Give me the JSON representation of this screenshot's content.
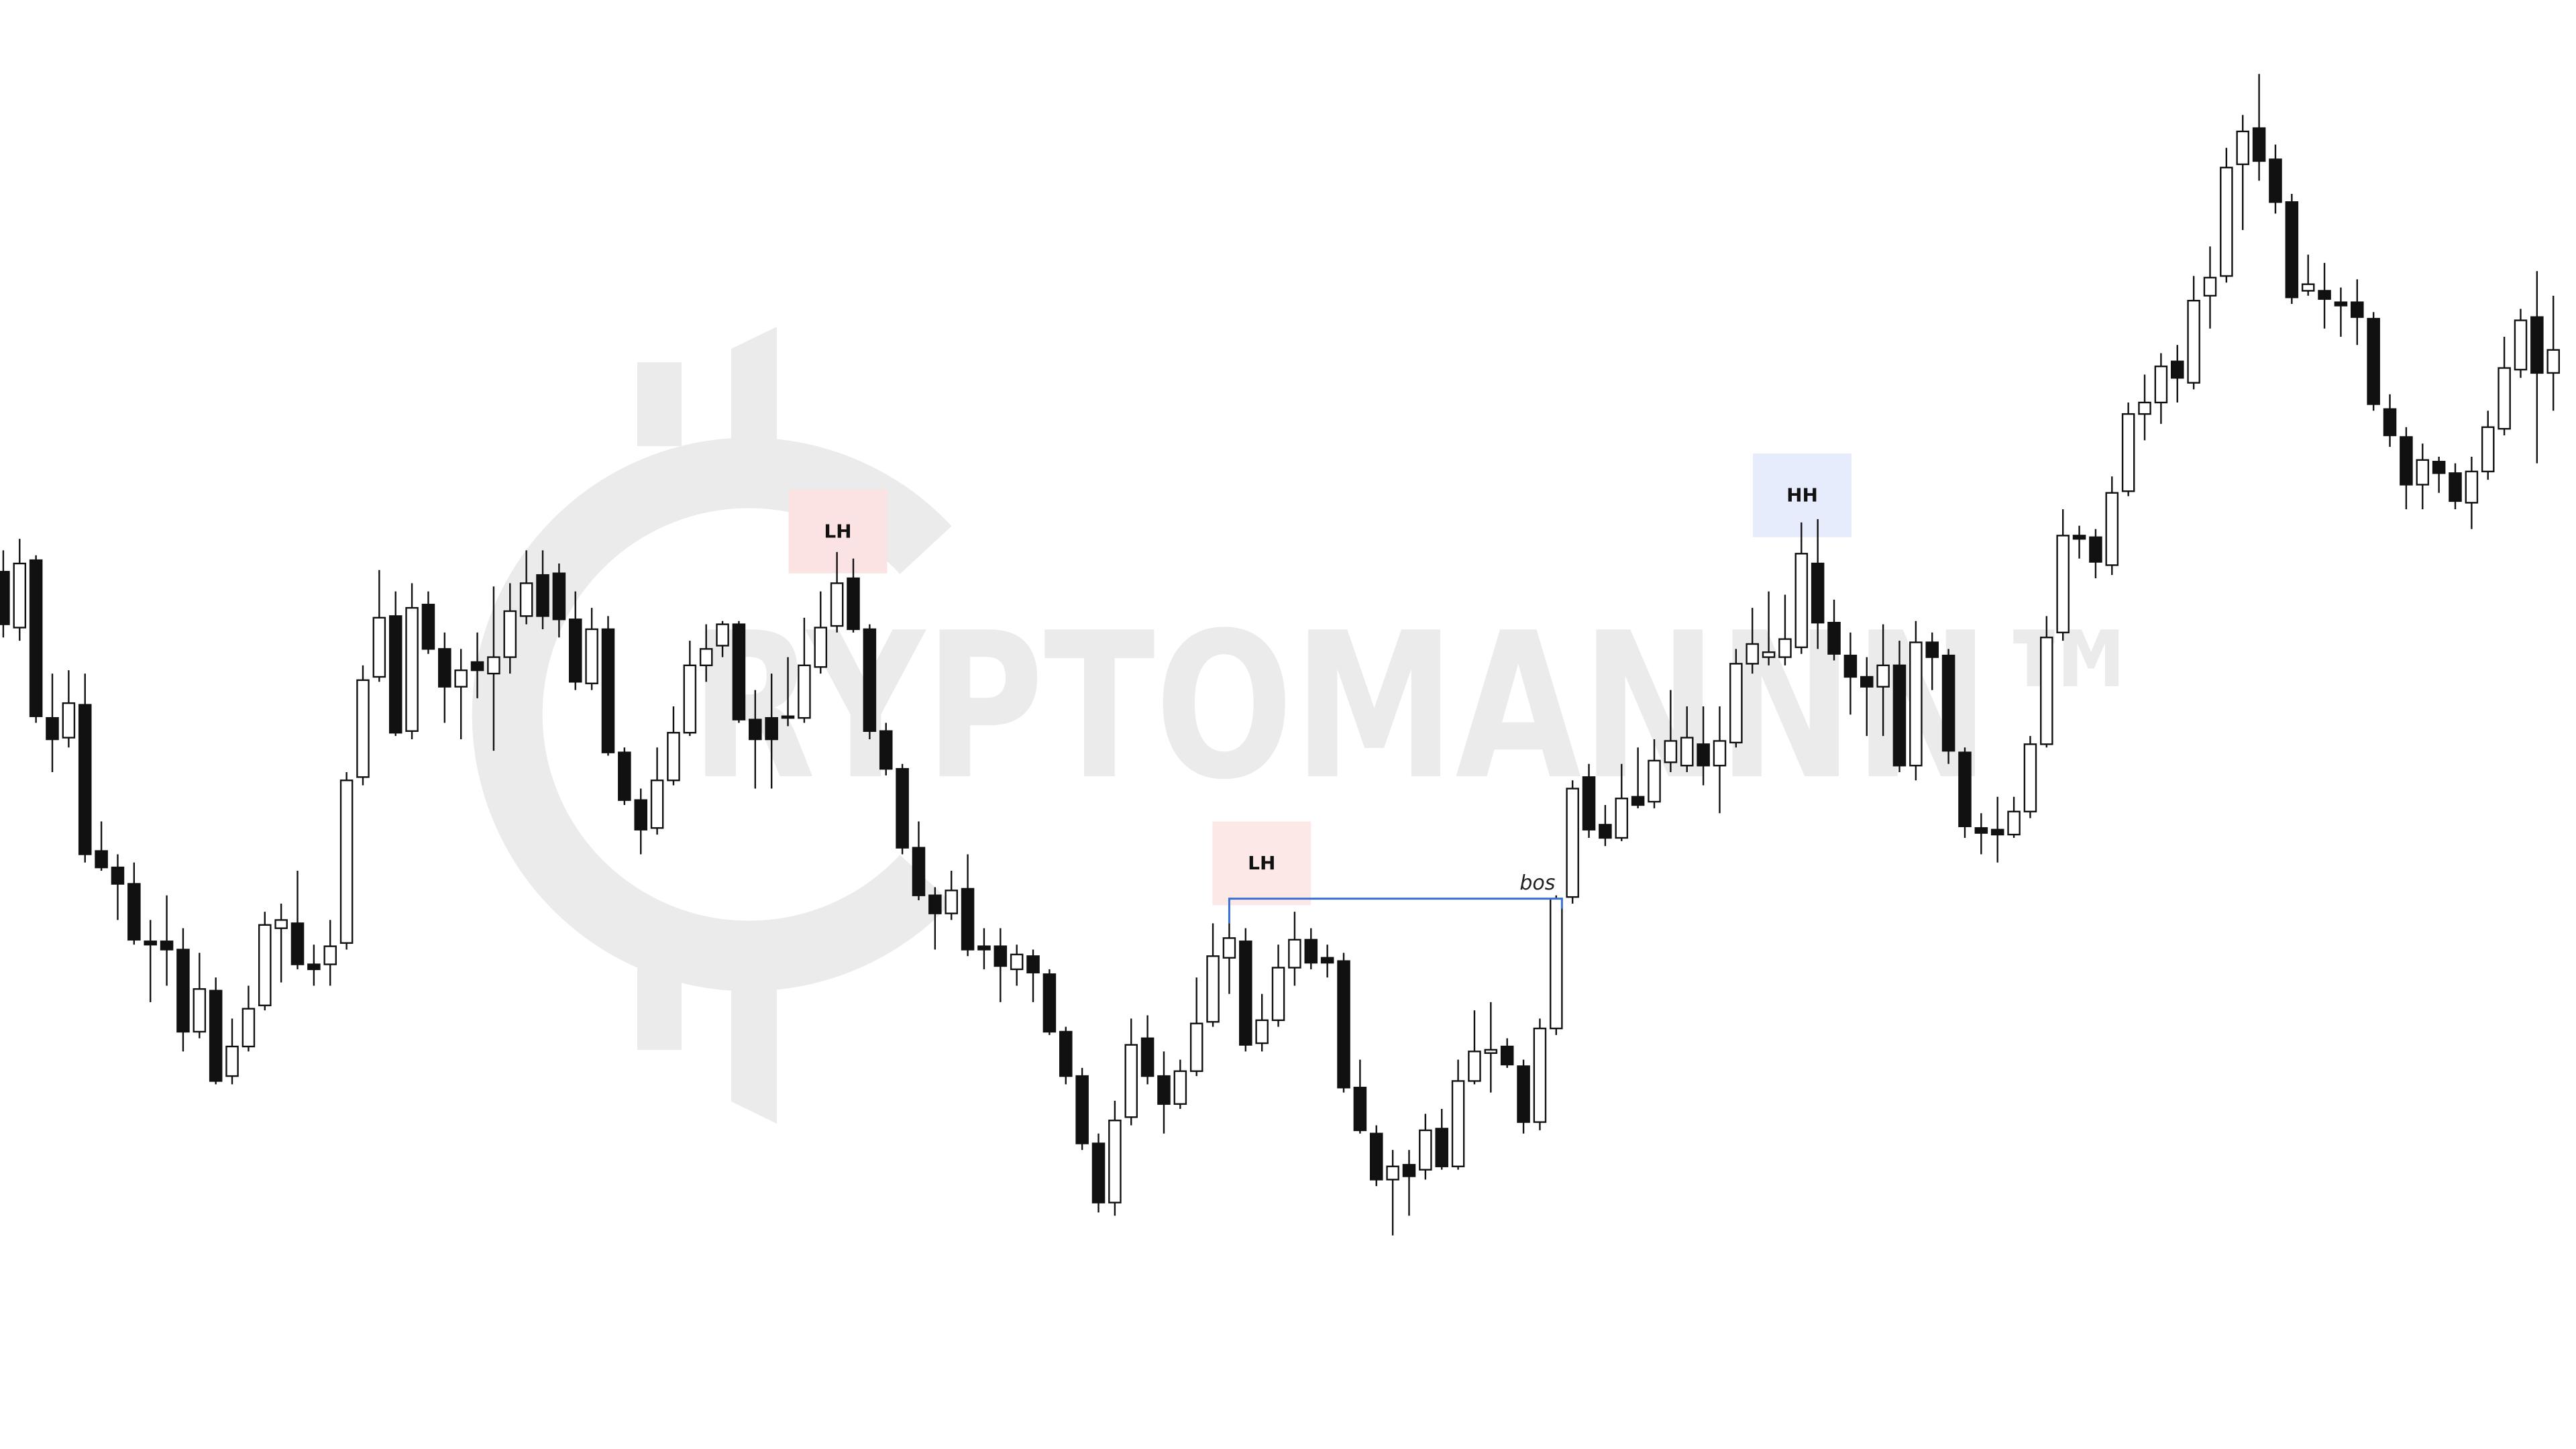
{
  "chart_data": {
    "type": "candlestick",
    "watermark": "RYPTOMANNN™",
    "ylim": [
      118,
      1000
    ],
    "up_color": "#ffffff",
    "down_color": "#111111",
    "open": [
      652,
      618,
      659,
      563,
      551,
      571,
      482,
      472,
      462,
      427,
      427,
      422,
      372,
      397,
      345,
      363,
      388,
      435,
      438,
      413,
      413,
      426,
      527,
      588,
      625,
      555,
      632,
      605,
      582,
      597,
      590,
      600,
      625,
      650,
      651,
      623,
      584,
      617,
      542,
      513,
      496,
      525,
      554,
      595,
      607,
      620,
      562,
      563,
      564,
      563,
      594,
      619,
      648,
      617,
      555,
      532,
      484,
      455,
      444,
      459,
      424,
      424,
      410,
      418,
      407,
      372,
      345,
      304,
      268,
      320,
      368,
      345,
      328,
      348,
      378,
      417,
      427,
      365,
      379,
      411,
      428,
      417,
      415,
      338,
      310,
      282,
      291,
      288,
      313,
      290,
      342,
      359,
      363,
      351,
      317,
      374,
      454,
      527,
      498,
      490,
      515,
      512,
      536,
      534,
      547,
      534,
      548,
      596,
      600,
      600,
      606,
      657,
      621,
      601,
      588,
      582,
      595,
      534,
      609,
      601,
      542,
      496,
      495,
      492,
      506,
      547,
      615,
      674,
      673,
      656,
      701,
      748,
      755,
      780,
      767,
      820,
      832,
      900,
      922,
      903,
      877,
      823,
      823,
      816,
      816,
      806,
      751,
      734,
      705,
      719,
      712,
      694,
      713,
      739,
      775,
      807,
      773
    ],
    "high": [
      665,
      672,
      662,
      590,
      592,
      590,
      500,
      480,
      475,
      440,
      455,
      435,
      420,
      405,
      380,
      400,
      445,
      450,
      470,
      425,
      440,
      530,
      595,
      653,
      640,
      645,
      640,
      615,
      605,
      615,
      643,
      645,
      665,
      665,
      657,
      640,
      630,
      625,
      545,
      520,
      545,
      570,
      610,
      620,
      622,
      622,
      580,
      590,
      600,
      624,
      640,
      664,
      660,
      620,
      560,
      535,
      500,
      460,
      470,
      480,
      435,
      435,
      425,
      422,
      410,
      375,
      350,
      310,
      330,
      380,
      382,
      360,
      355,
      405,
      438,
      438,
      435,
      395,
      425,
      445,
      435,
      425,
      420,
      355,
      315,
      300,
      300,
      322,
      325,
      355,
      385,
      390,
      368,
      355,
      380,
      455,
      525,
      535,
      510,
      535,
      545,
      550,
      580,
      570,
      570,
      570,
      605,
      630,
      640,
      638,
      682,
      684,
      635,
      615,
      600,
      620,
      610,
      622,
      615,
      605,
      545,
      505,
      515,
      515,
      552,
      625,
      690,
      680,
      678,
      710,
      755,
      772,
      785,
      790,
      832,
      850,
      910,
      930,
      955,
      912,
      882,
      845,
      840,
      825,
      830,
      810,
      760,
      740,
      730,
      722,
      718,
      722,
      750,
      795,
      812,
      835,
      820
    ],
    "low": [
      612,
      610,
      560,
      530,
      545,
      475,
      470,
      440,
      425,
      390,
      400,
      360,
      368,
      340,
      340,
      360,
      385,
      402,
      410,
      400,
      400,
      422,
      522,
      585,
      552,
      550,
      602,
      560,
      550,
      575,
      543,
      590,
      620,
      617,
      612,
      580,
      580,
      540,
      510,
      480,
      492,
      522,
      552,
      585,
      600,
      560,
      520,
      520,
      558,
      560,
      590,
      615,
      615,
      550,
      528,
      480,
      452,
      422,
      440,
      418,
      410,
      390,
      400,
      390,
      370,
      340,
      300,
      262,
      260,
      315,
      340,
      310,
      325,
      345,
      375,
      395,
      360,
      360,
      375,
      400,
      410,
      405,
      335,
      310,
      278,
      248,
      260,
      282,
      288,
      288,
      340,
      335,
      350,
      310,
      312,
      370,
      450,
      490,
      485,
      488,
      508,
      508,
      530,
      530,
      522,
      505,
      545,
      590,
      595,
      595,
      602,
      605,
      598,
      565,
      552,
      552,
      530,
      525,
      580,
      535,
      490,
      480,
      475,
      490,
      502,
      545,
      610,
      660,
      648,
      650,
      698,
      732,
      742,
      755,
      763,
      800,
      828,
      860,
      890,
      870,
      815,
      820,
      800,
      795,
      790,
      750,
      728,
      690,
      690,
      700,
      690,
      678,
      708,
      735,
      770,
      718,
      750
    ],
    "close": [
      620,
      657,
      564,
      550,
      572,
      480,
      472,
      462,
      428,
      425,
      422,
      372,
      398,
      342,
      363,
      386,
      437,
      440,
      413,
      410,
      424,
      525,
      586,
      624,
      554,
      630,
      605,
      582,
      592,
      592,
      600,
      628,
      645,
      625,
      623,
      585,
      617,
      542,
      513,
      495,
      525,
      554,
      595,
      605,
      620,
      562,
      550,
      550,
      563,
      595,
      618,
      645,
      617,
      555,
      532,
      484,
      455,
      444,
      458,
      422,
      422,
      412,
      419,
      408,
      372,
      345,
      304,
      268,
      318,
      364,
      345,
      328,
      348,
      377,
      418,
      429,
      364,
      379,
      411,
      428,
      414,
      414,
      338,
      312,
      282,
      290,
      284,
      312,
      290,
      342,
      360,
      361,
      352,
      317,
      374,
      453,
      520,
      495,
      490,
      514,
      510,
      537,
      549,
      551,
      534,
      549,
      596,
      608,
      603,
      611,
      663,
      621,
      602,
      588,
      582,
      595,
      534,
      609,
      600,
      543,
      497,
      493,
      492,
      506,
      547,
      612,
      674,
      672,
      658,
      700,
      748,
      755,
      777,
      770,
      817,
      831,
      898,
      920,
      902,
      877,
      819,
      827,
      818,
      814,
      807,
      754,
      735,
      705,
      720,
      712,
      695,
      713,
      740,
      776,
      805,
      773,
      787
    ],
    "annotations": [
      {
        "text": "LH",
        "color": "#fbe3e3"
      },
      {
        "text": "LH",
        "color": "#fde8e8"
      },
      {
        "text": "HH",
        "color": "#e6ecfb"
      }
    ],
    "bos": {
      "text": "bos",
      "value": 453,
      "color": "#3b6fd4"
    }
  }
}
